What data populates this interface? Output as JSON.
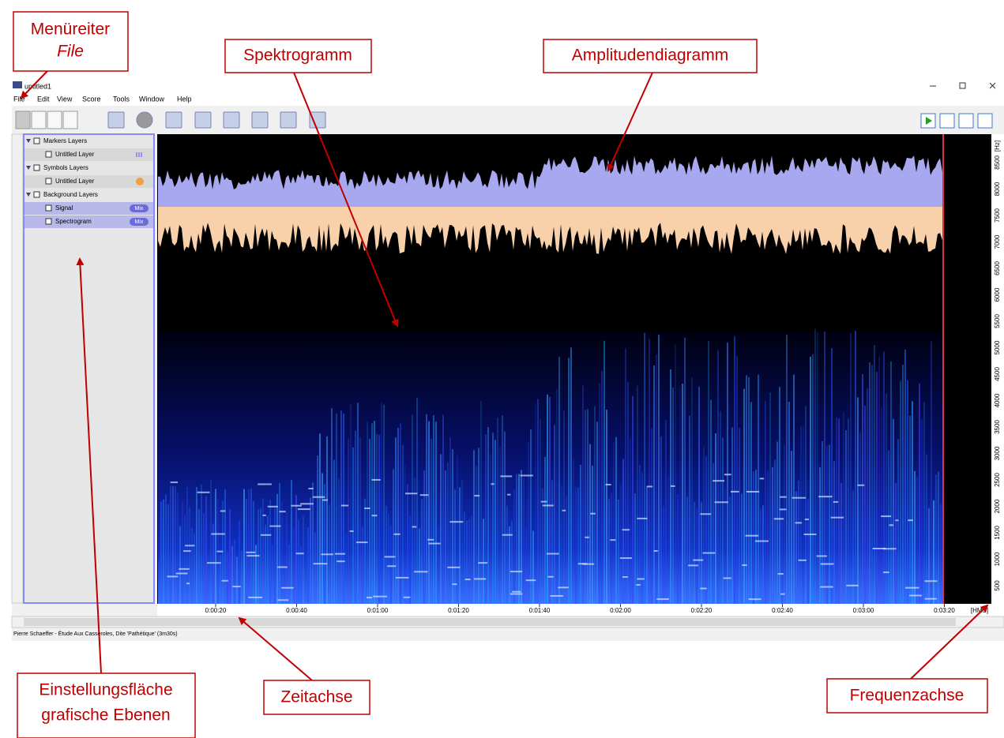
{
  "window": {
    "title": "untitled1"
  },
  "menu": [
    "File",
    "Edit",
    "View",
    "Score",
    "Tools",
    "Window",
    "Help"
  ],
  "layers": [
    {
      "group": "Markers Layers",
      "items": [
        {
          "label": "Untitled Layer"
        }
      ]
    },
    {
      "group": "Symbols Layers",
      "items": [
        {
          "label": "Untitled Layer"
        }
      ]
    },
    {
      "group": "Background Layers",
      "items": [
        {
          "label": "Signal",
          "badge": "Mix"
        },
        {
          "label": "Spectrogram",
          "badge": "Mix"
        }
      ]
    }
  ],
  "time_axis": {
    "labels": [
      "0:00:20",
      "0:00:40",
      "0:01:00",
      "0:01:20",
      "0:01:40",
      "0:02:00",
      "0:02:20",
      "0:02:40",
      "0:03:00",
      "0:03:20"
    ],
    "unit": "[HMS]"
  },
  "frequency_axis": {
    "unit": "[Hz]",
    "labels": [
      "8500",
      "8000",
      "7500",
      "7000",
      "6500",
      "6000",
      "5500",
      "5000",
      "4500",
      "4000",
      "3500",
      "3000",
      "2500",
      "2000",
      "1500",
      "1000",
      "500"
    ]
  },
  "status": "Pierre Schaeffer - Étude Aux Casseroles, Dite 'Pathétique' (3m30s)",
  "annotations": {
    "menu_tab": {
      "line1": "Menüreiter",
      "line2": "File"
    },
    "spectrogram": "Spektrogramm",
    "amplitude": "Amplitudendiagramm",
    "layers_panel": {
      "line1": "Einstellungsfläche",
      "line2": "grafische Ebenen"
    },
    "time_axis": "Zeitachse",
    "frequency_axis": "Frequenzachse"
  }
}
